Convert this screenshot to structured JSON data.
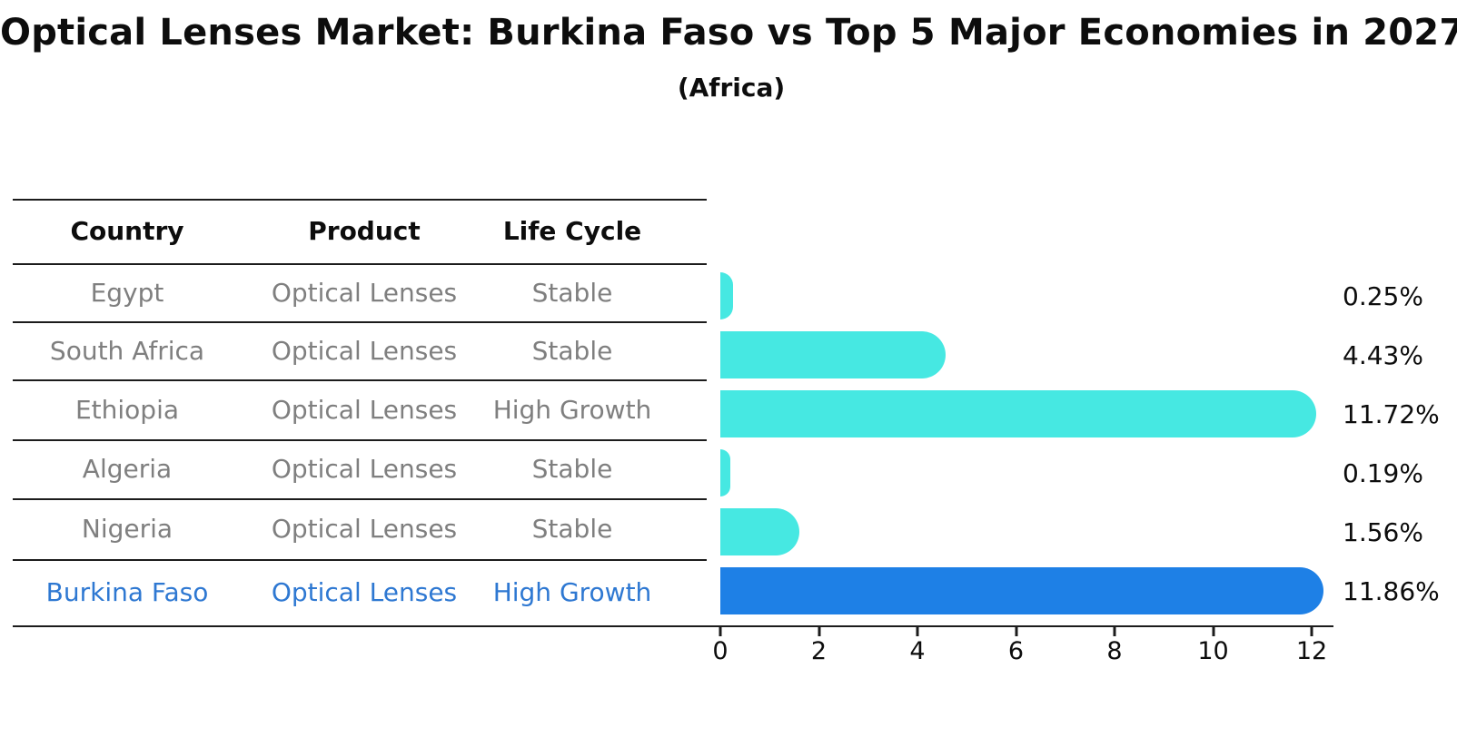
{
  "title": "Optical Lenses Market: Burkina Faso vs Top 5 Major Economies in 2027",
  "subtitle": "(Africa)",
  "table": {
    "headers": [
      "Country",
      "Product",
      "Life Cycle"
    ],
    "rows": [
      {
        "country": "Egypt",
        "product": "Optical Lenses",
        "life_cycle": "Stable",
        "highlight": false
      },
      {
        "country": "South Africa",
        "product": "Optical Lenses",
        "life_cycle": "Stable",
        "highlight": false
      },
      {
        "country": "Ethiopia",
        "product": "Optical Lenses",
        "life_cycle": "High Growth",
        "highlight": false
      },
      {
        "country": "Algeria",
        "product": "Optical Lenses",
        "life_cycle": "Stable",
        "highlight": false
      },
      {
        "country": "Nigeria",
        "product": "Optical Lenses",
        "life_cycle": "Stable",
        "highlight": false
      },
      {
        "country": "Burkina Faso",
        "product": "Optical Lenses",
        "life_cycle": "High Growth",
        "highlight": true
      }
    ]
  },
  "chart_data": {
    "type": "bar",
    "orientation": "horizontal",
    "title": "Optical Lenses Market: Burkina Faso vs Top 5 Major Economies in 2027 (Africa)",
    "categories": [
      "Egypt",
      "South Africa",
      "Ethiopia",
      "Algeria",
      "Nigeria",
      "Burkina Faso"
    ],
    "values": [
      0.25,
      4.43,
      11.72,
      0.19,
      1.56,
      11.86
    ],
    "value_labels": [
      "0.25%",
      "4.43%",
      "11.72%",
      "0.19%",
      "1.56%",
      "11.86%"
    ],
    "unit": "percent",
    "xticks": [
      0,
      2,
      4,
      6,
      8,
      10,
      12
    ],
    "xlim": [
      0,
      12.5
    ],
    "grid": false,
    "legend": "none",
    "bar_color": "#46e8e2",
    "highlight_color": "#1e80e6",
    "highlight_index": 5,
    "highlight_border_style": "dotted",
    "xlabel": "",
    "ylabel": ""
  },
  "colors": {
    "background": "#ffffff",
    "text_primary": "#0d0d0d",
    "text_muted": "#7f7f7f",
    "highlight_text": "#2e78d2",
    "axis_line": "#1c1c1c"
  }
}
